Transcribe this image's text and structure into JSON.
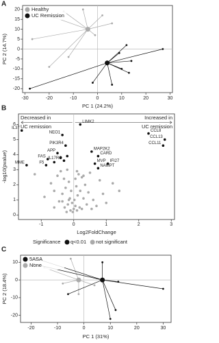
{
  "chart_data": [
    {
      "type": "scatter",
      "panel": "A",
      "x_label": "PC 1 (24.2%)",
      "y_label": "PC 2 (14.7%)",
      "xlim": [
        -31,
        31
      ],
      "ylim": [
        -22,
        22
      ],
      "xticks": [
        -30,
        -20,
        -10,
        0,
        10,
        20,
        30
      ],
      "yticks": [
        -20,
        -15,
        -10,
        -5,
        0,
        5,
        10,
        15,
        20
      ],
      "zero_lines": true,
      "legend": "top-left",
      "series": [
        {
          "name": "Healthy",
          "color": "#aaaaaa",
          "x": [
            -27,
            -18,
            -14,
            -6,
            2,
            -1,
            -12,
            -20,
            6
          ],
          "values": [
            5,
            16,
            19,
            20,
            17,
            7,
            -4,
            -9,
            13
          ],
          "centroid": [
            -4,
            10
          ]
        },
        {
          "name": "UC Remission",
          "color": "#111111",
          "x": [
            -28,
            27,
            12,
            9,
            10,
            6,
            -2,
            14,
            13
          ],
          "values": [
            -20,
            0,
            2,
            -2,
            -10,
            -18,
            -17,
            -6,
            -12
          ],
          "centroid": [
            4,
            -7
          ]
        }
      ]
    },
    {
      "type": "scatter",
      "panel": "B",
      "x_label": "Log2FoldChange",
      "y_label": "-log10(pvalue)",
      "xlim": [
        -1.7,
        3.1
      ],
      "ylim": [
        -0.3,
        6.7
      ],
      "xticks": [
        -1,
        0,
        1,
        2,
        3
      ],
      "yticks": [
        0,
        1,
        2,
        3,
        4,
        5,
        6
      ],
      "zero_lines": true,
      "legend": "bottom",
      "legend_title": "Significance",
      "annotations": [
        {
          "lines": [
            "Decreased in",
            "UC remission"
          ]
        },
        {
          "lines": [
            "Increased in",
            "UC remission"
          ]
        }
      ],
      "series": [
        {
          "name": "q<0.01",
          "color": "#111111",
          "x": [
            0.2,
            -0.35,
            -0.25,
            -0.5,
            -0.3,
            -1.6,
            -0.8,
            -1.45,
            -0.85,
            0.55,
            0.75,
            0.65,
            0.75,
            1.05,
            2.3,
            2.8,
            2.75,
            -0.4,
            -0.6,
            -0.2
          ],
          "values": [
            6.0,
            5.3,
            4.6,
            4.1,
            3.6,
            5.6,
            3.7,
            3.3,
            3.3,
            4.2,
            3.9,
            3.4,
            3.1,
            3.4,
            5.4,
            5.0,
            4.6,
            3.8,
            3.5,
            3.9
          ],
          "labels": [
            "LIMK2",
            "NEO1",
            "PIK3R4",
            "APP",
            "IL17RC",
            "IL37",
            "FAS",
            "MME",
            "F5",
            "MAP2K2",
            "CARD",
            "MVP",
            "NAMPT",
            "IFI27",
            "CCL8",
            "CCL13",
            "CCL11",
            null,
            null,
            null
          ]
        },
        {
          "name": "not significant",
          "color": "#aaaaaa",
          "x": [
            -0.9,
            -0.7,
            -0.6,
            -0.5,
            -0.45,
            -0.4,
            -0.35,
            -0.3,
            -0.28,
            -0.25,
            -0.2,
            -0.18,
            -0.15,
            -0.12,
            -0.1,
            -0.08,
            -0.05,
            -0.03,
            0,
            0.02,
            0.05,
            0.08,
            0.1,
            0.12,
            0.15,
            0.18,
            0.2,
            0.25,
            0.3,
            0.35,
            0.4,
            0.45,
            0.5,
            0.6,
            0.7,
            0.8,
            0.9,
            1.0,
            1.2,
            1.4,
            -0.22,
            -0.15,
            0.05,
            0.1,
            0.25,
            -0.6,
            -1.2,
            0.55,
            -0.35,
            0.3
          ],
          "values": [
            1.2,
            2.1,
            1.6,
            2.6,
            0.9,
            2.9,
            1.4,
            2.4,
            0.5,
            1.8,
            3.0,
            0.7,
            2.2,
            1.1,
            0.3,
            1.6,
            0.8,
            0.2,
            0.4,
            1.0,
            0.6,
            1.9,
            0.3,
            1.3,
            2.7,
            0.5,
            1.6,
            2.5,
            1.1,
            2.0,
            0.7,
            1.5,
            2.8,
            1.0,
            0.6,
            2.3,
            1.4,
            0.8,
            2.1,
            1.6,
            0.2,
            1.0,
            2.4,
            2.9,
            0.4,
            0.5,
            2.7,
            0.4,
            0.9,
            2.6
          ]
        }
      ]
    },
    {
      "type": "scatter",
      "panel": "C",
      "x_label": "PC 1 (31%)",
      "y_label": "PC 2 (18.4%)",
      "xlim": [
        -24,
        33
      ],
      "ylim": [
        -24,
        14
      ],
      "xticks": [
        -20,
        -10,
        0,
        10,
        20,
        30
      ],
      "yticks": [
        -20,
        -10,
        0,
        10
      ],
      "zero_lines": true,
      "legend": "top-left",
      "series": [
        {
          "name": "5ASA",
          "color": "#111111",
          "x": [
            -18,
            -6,
            10,
            12,
            30,
            13,
            7,
            -19
          ],
          "values": [
            12,
            -8,
            -22,
            -17,
            -5,
            -1,
            10,
            9
          ],
          "centroid": [
            7,
            0
          ]
        },
        {
          "name": "None",
          "color": "#aaaaaa",
          "x": [
            -15,
            -8,
            -2,
            -5,
            4
          ],
          "values": [
            7,
            -2,
            -8,
            12,
            -3
          ],
          "centroid": [
            -2,
            0
          ]
        }
      ]
    }
  ]
}
